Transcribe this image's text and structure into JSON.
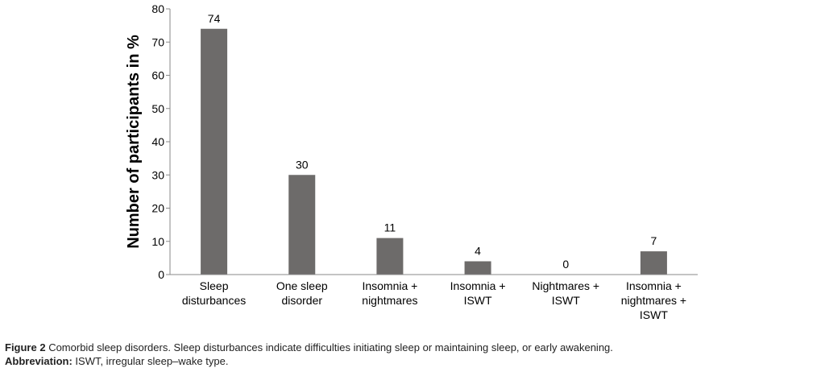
{
  "chart_data": {
    "type": "bar",
    "categories": [
      [
        "Sleep",
        "disturbances"
      ],
      [
        "One sleep",
        "disorder"
      ],
      [
        "Insomnia +",
        "nightmares"
      ],
      [
        "Insomnia +",
        "ISWT"
      ],
      [
        "Nightmares +",
        "ISWT"
      ],
      [
        "Insomnia +",
        "nightmares +",
        "ISWT"
      ]
    ],
    "values": [
      74,
      30,
      11,
      4,
      0,
      7
    ],
    "data_labels": [
      "74",
      "30",
      "11",
      "4",
      "0",
      "7"
    ],
    "ylabel": "Number of participants in %",
    "xlabel": "",
    "ylim": [
      0,
      80
    ],
    "yticks": [
      0,
      10,
      20,
      30,
      40,
      50,
      60,
      70,
      80
    ],
    "bar_color": "#6d6b6a",
    "grid": false,
    "legend": "none"
  },
  "caption": {
    "figure_label": "Figure 2",
    "figure_text": " Comorbid sleep disorders. Sleep disturbances indicate difficulties initiating sleep or maintaining sleep, or early awakening.",
    "abbreviation_label": "Abbreviation:",
    "abbreviation_text": " ISWT, irregular sleep–wake type."
  }
}
